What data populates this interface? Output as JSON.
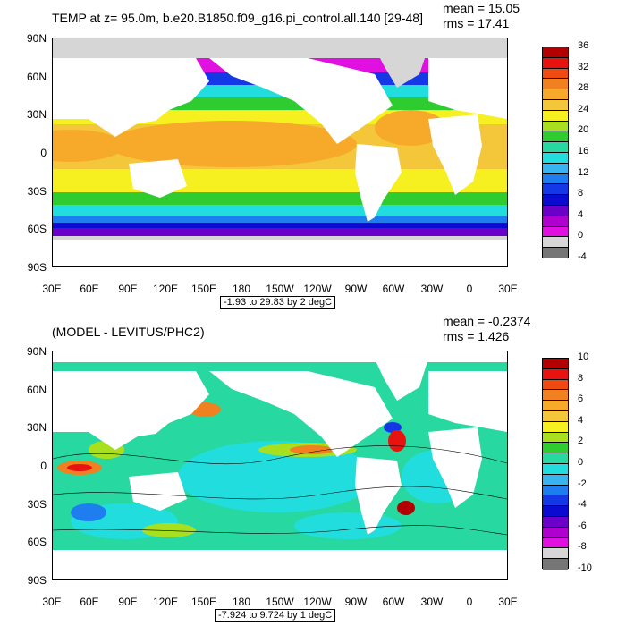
{
  "top": {
    "title": "TEMP at z=  95.0m, b.e20.B1850.f09_g16.pi_control.all.140 [29-48]",
    "mean": "mean = 15.05",
    "rms": "rms = 17.41",
    "range": "-1.93 to 29.83 by 2 degC",
    "y_labels": [
      "90N",
      "60N",
      "30N",
      "0",
      "30S",
      "60S",
      "90S"
    ],
    "x_labels": [
      "30E",
      "60E",
      "90E",
      "120E",
      "150E",
      "180",
      "150W",
      "120W",
      "90W",
      "60W",
      "30W",
      "0",
      "30E"
    ],
    "colorbar_labels": [
      "36",
      "32",
      "28",
      "24",
      "20",
      "16",
      "12",
      "8",
      "4",
      "0",
      "-4"
    ],
    "colorbar_colors": [
      "#b30000",
      "#e8120f",
      "#f04a10",
      "#f08020",
      "#f7aa2a",
      "#f4c73b",
      "#f6f020",
      "#a8e020",
      "#2ecc2e",
      "#27d9a0",
      "#22dddd",
      "#38b4f0",
      "#1e7ef0",
      "#1438e6",
      "#0a0ad0",
      "#6b00c9",
      "#b000d0",
      "#e010e0",
      "#d6d6d6",
      "#767676"
    ]
  },
  "bottom": {
    "title": "(MODEL - LEVITUS/PHC2)",
    "mean": "mean = -0.2374",
    "rms": "rms = 1.426",
    "range": "-7.924 to 9.724 by 1 degC",
    "y_labels": [
      "90N",
      "60N",
      "30N",
      "0",
      "30S",
      "60S",
      "90S"
    ],
    "x_labels": [
      "30E",
      "60E",
      "90E",
      "120E",
      "150E",
      "180",
      "150W",
      "120W",
      "90W",
      "60W",
      "30W",
      "0",
      "30E"
    ],
    "colorbar_labels": [
      "10",
      "8",
      "6",
      "4",
      "2",
      "0",
      "-2",
      "-4",
      "-6",
      "-8",
      "-10"
    ],
    "colorbar_colors": [
      "#b30000",
      "#e8120f",
      "#f04a10",
      "#f08020",
      "#f7aa2a",
      "#f4c73b",
      "#f6f020",
      "#a8e020",
      "#2ecc2e",
      "#27d9a0",
      "#22dddd",
      "#38b4f0",
      "#1e7ef0",
      "#1438e6",
      "#0a0ad0",
      "#6b00c9",
      "#b000d0",
      "#e010e0",
      "#d6d6d6",
      "#767676"
    ]
  }
}
